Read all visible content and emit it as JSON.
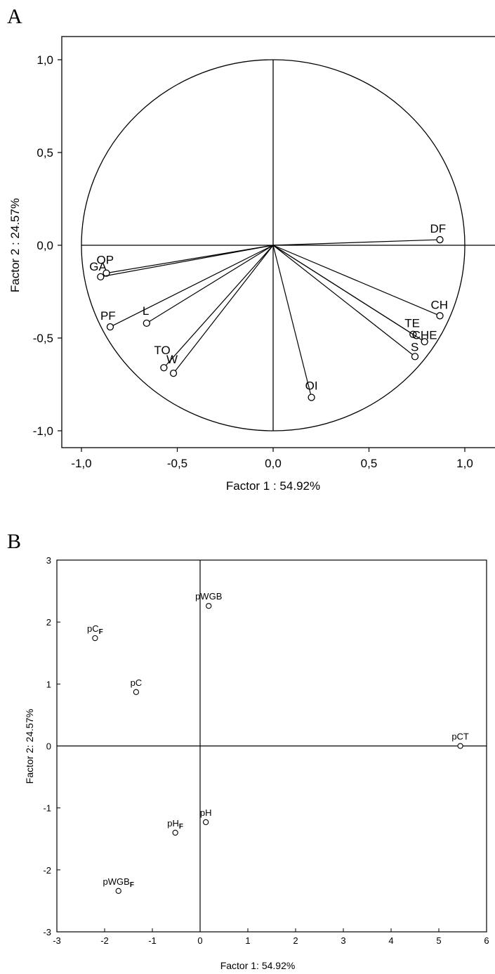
{
  "chart_data": [
    {
      "panel": "A",
      "type": "scatter",
      "subtype": "factor-loadings-circle",
      "xlabel": "Factor 1 : 54.92%",
      "ylabel": "Factor 2 : 24.57%",
      "xlim": [
        -1.1,
        1.1
      ],
      "ylim": [
        -1.1,
        1.1
      ],
      "xticks": [
        -1.0,
        -0.5,
        0.0,
        0.5,
        1.0
      ],
      "yticks": [
        -1.0,
        -0.5,
        0.0,
        0.5,
        1.0
      ],
      "xtick_labels": [
        "-1,0",
        "-0,5",
        "0,0",
        "0,5",
        "1,0"
      ],
      "ytick_labels": [
        "-1,0",
        "-0,5",
        "0,0",
        "0,5",
        "1,0"
      ],
      "unit_circle": true,
      "points": [
        {
          "label": "DF",
          "x": 0.87,
          "y": 0.03
        },
        {
          "label": "OP",
          "x": -0.87,
          "y": -0.15
        },
        {
          "label": "GA",
          "x": -0.9,
          "y": -0.17
        },
        {
          "label": "PF",
          "x": -0.85,
          "y": -0.44
        },
        {
          "label": "L",
          "x": -0.66,
          "y": -0.42
        },
        {
          "label": "TO",
          "x": -0.57,
          "y": -0.66
        },
        {
          "label": "W",
          "x": -0.52,
          "y": -0.69
        },
        {
          "label": "OI",
          "x": 0.2,
          "y": -0.82
        },
        {
          "label": "CH",
          "x": 0.87,
          "y": -0.38
        },
        {
          "label": "TE",
          "x": 0.73,
          "y": -0.48
        },
        {
          "label": "CHE",
          "x": 0.79,
          "y": -0.52
        },
        {
          "label": "S",
          "x": 0.74,
          "y": -0.6
        }
      ]
    },
    {
      "panel": "B",
      "type": "scatter",
      "subtype": "factor-scores",
      "xlabel": "Factor 1: 54.92%",
      "ylabel": "Factor 2: 24.57%",
      "xlim": [
        -3,
        6
      ],
      "ylim": [
        -3,
        3
      ],
      "xticks": [
        -3,
        -2,
        -1,
        0,
        1,
        2,
        3,
        4,
        5,
        6
      ],
      "yticks": [
        -3,
        -2,
        -1,
        0,
        1,
        2,
        3
      ],
      "xtick_labels": [
        "-3",
        "-2",
        "-1",
        "0",
        "1",
        "2",
        "3",
        "4",
        "5",
        "6"
      ],
      "ytick_labels": [
        "-3",
        "-2",
        "-1",
        "0",
        "1",
        "2",
        "3"
      ],
      "points": [
        {
          "label": "pWGB",
          "sub": "",
          "x": 0.18,
          "y": 2.26
        },
        {
          "label": "pC",
          "sub": "F",
          "x": -2.2,
          "y": 1.74
        },
        {
          "label": "pC",
          "sub": "",
          "x": -1.34,
          "y": 0.87
        },
        {
          "label": "pCT",
          "sub": "",
          "x": 5.45,
          "y": 0.0
        },
        {
          "label": "pH",
          "sub": "",
          "x": 0.12,
          "y": -1.23
        },
        {
          "label": "pH",
          "sub": "F",
          "x": -0.52,
          "y": -1.4
        },
        {
          "label": "pWGB",
          "sub": "F",
          "x": -1.71,
          "y": -2.34
        }
      ]
    }
  ],
  "panel_letters": [
    "A",
    "B"
  ]
}
